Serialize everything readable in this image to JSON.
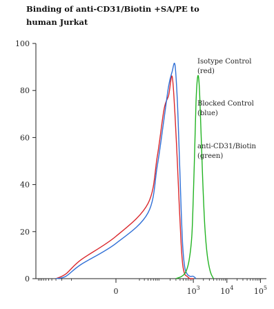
{
  "chart_data": {
    "type": "line",
    "title_lines": [
      "Binding of anti-CD31/Biotin +SA/PE to",
      "human Jurkat"
    ],
    "xlabel": "",
    "ylabel": "",
    "ylim": [
      0,
      100
    ],
    "y_ticks": [
      0,
      20,
      40,
      60,
      80,
      100
    ],
    "x_scale": "biexponential",
    "x_ticks": [
      {
        "value": 0,
        "label": "0"
      },
      {
        "value": 1000,
        "base": "10",
        "exp": "3"
      },
      {
        "value": 10000,
        "base": "10",
        "exp": "4"
      },
      {
        "value": 100000,
        "base": "10",
        "exp": "5"
      }
    ],
    "grid": false,
    "legend_placement": "right",
    "legend": [
      {
        "lines": [
          "Isotype Control",
          "(red)"
        ],
        "color": "#d9262b"
      },
      {
        "lines": [
          "Blocked Control",
          "(blue)"
        ],
        "color": "#2f6fd6"
      },
      {
        "lines": [
          "anti-CD31/Biotin",
          "(green)"
        ],
        "color": "#22b322"
      }
    ],
    "series": [
      {
        "color": "#d9262b",
        "x": [
          -300,
          -150,
          -50,
          0,
          40,
          80,
          130,
          180,
          230,
          280,
          330,
          380,
          430,
          480,
          550,
          650,
          800,
          1000
        ],
        "y": [
          0,
          2,
          8,
          18,
          32,
          52,
          72,
          78,
          86,
          70,
          50,
          30,
          15,
          6,
          2,
          1,
          0,
          0
        ]
      },
      {
        "color": "#2f6fd6",
        "x": [
          -300,
          -150,
          -50,
          0,
          40,
          80,
          130,
          180,
          230,
          280,
          330,
          380,
          430,
          480,
          550,
          650,
          800,
          1000,
          1200
        ],
        "y": [
          0,
          1,
          6,
          15,
          28,
          48,
          68,
          82,
          88,
          91,
          76,
          52,
          30,
          14,
          5,
          2,
          1,
          1,
          0
        ]
      },
      {
        "color": "#22b322",
        "x": [
          300,
          450,
          600,
          750,
          900,
          1000,
          1100,
          1200,
          1350,
          1500,
          1700,
          1900,
          2200,
          2600,
          3200,
          4000
        ],
        "y": [
          0,
          1,
          3,
          8,
          18,
          35,
          55,
          75,
          86,
          82,
          62,
          42,
          22,
          10,
          3,
          0
        ]
      }
    ]
  }
}
